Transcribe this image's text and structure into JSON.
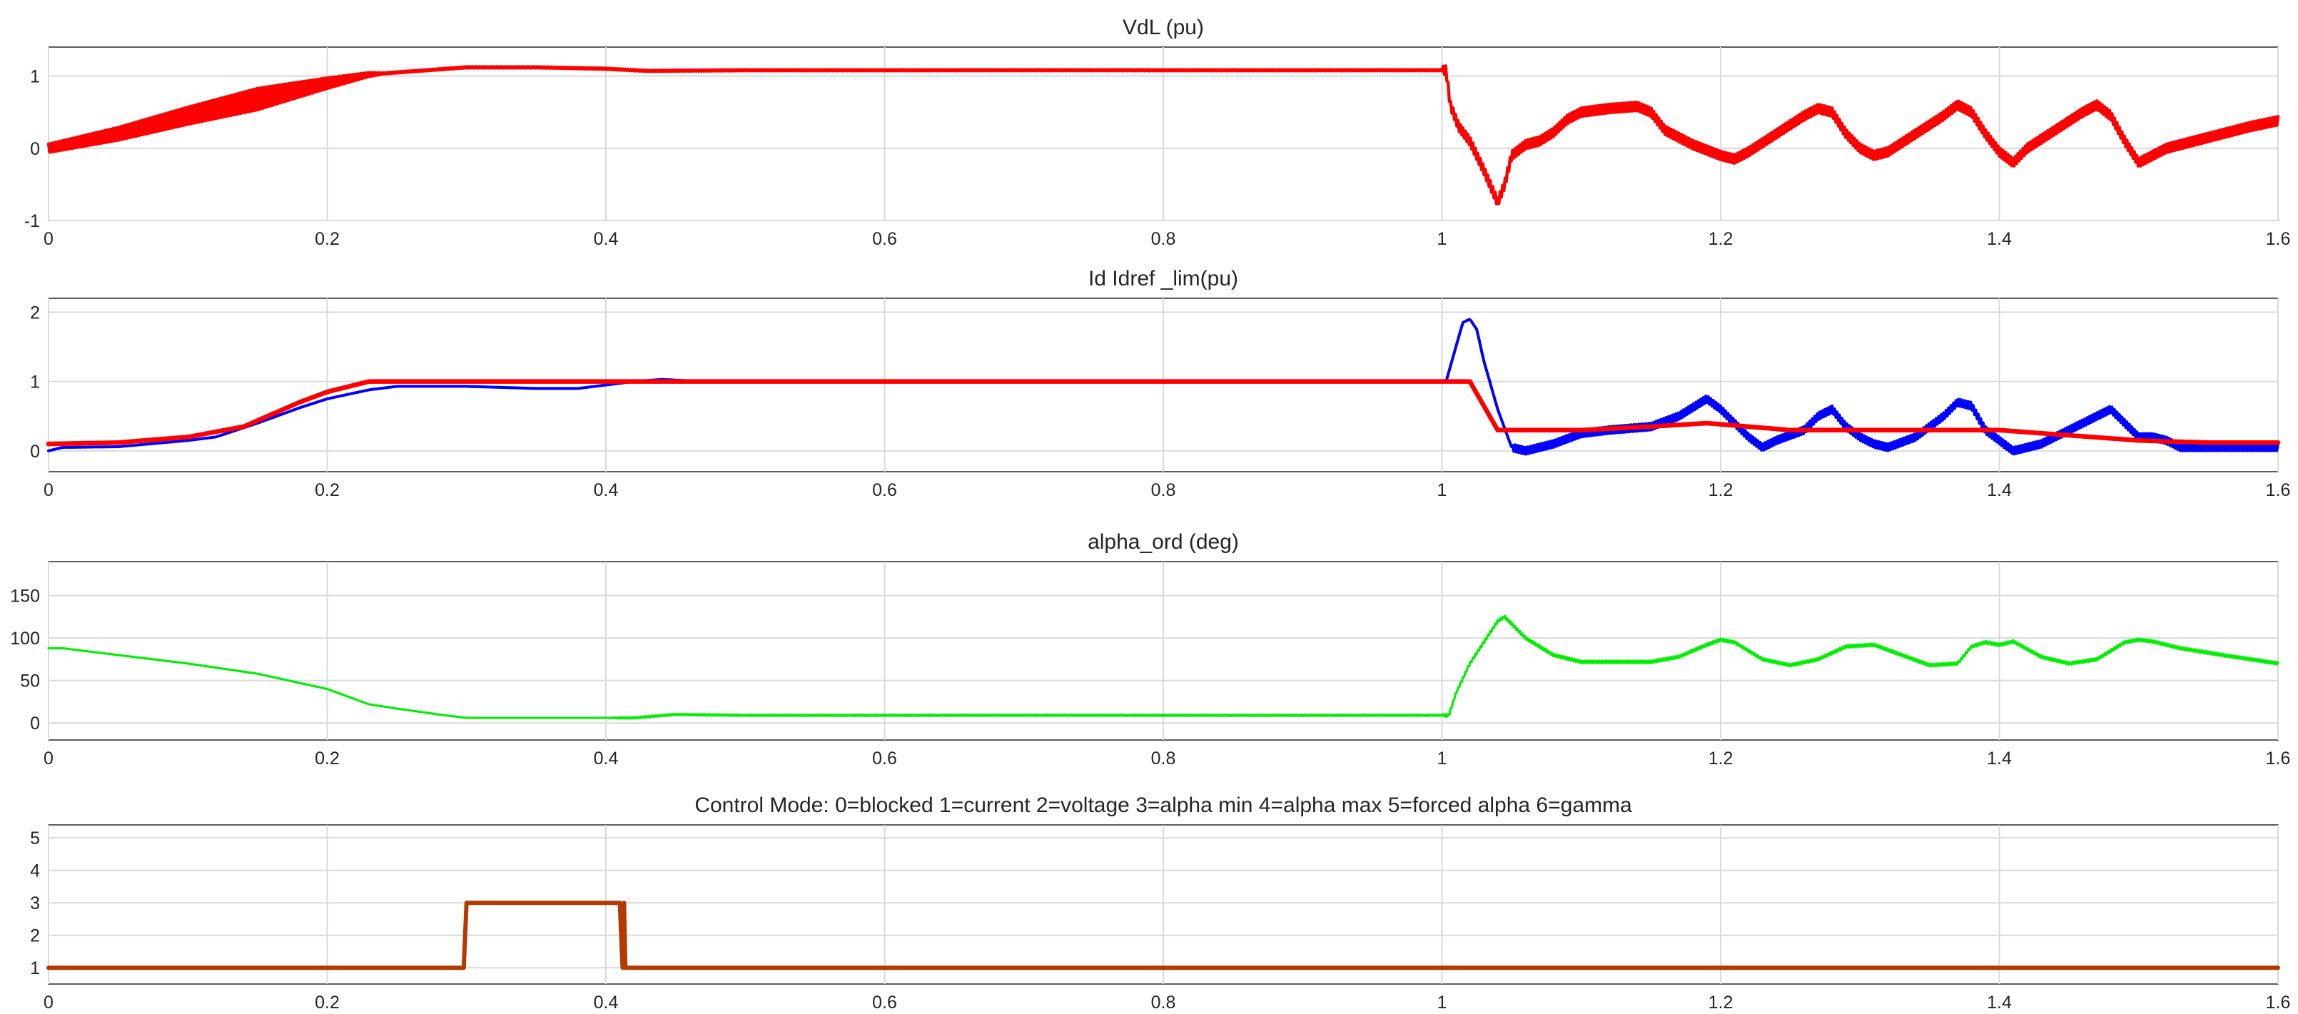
{
  "chart_data": [
    {
      "type": "line",
      "title": "VdL (pu)",
      "xlim": [
        0,
        1.6
      ],
      "ylim": [
        -1,
        1.4
      ],
      "xticks": [
        0,
        0.2,
        0.4,
        0.6,
        0.8,
        1,
        1.2,
        1.4,
        1.6
      ],
      "yticks": [
        -1,
        0,
        1
      ],
      "grid": true,
      "series": [
        {
          "color": "#ff0000",
          "ripple": [
            [
              0.0,
              0.06
            ],
            [
              0.15,
              0.15
            ],
            [
              0.23,
              0.03
            ],
            [
              0.24,
              0.01
            ],
            [
              1.0,
              0.01
            ],
            [
              1.001,
              0.06
            ],
            [
              1.6,
              0.06
            ]
          ],
          "points": [
            [
              0,
              0.0
            ],
            [
              0.05,
              0.2
            ],
            [
              0.1,
              0.45
            ],
            [
              0.15,
              0.68
            ],
            [
              0.2,
              0.9
            ],
            [
              0.23,
              1.02
            ],
            [
              0.25,
              1.05
            ],
            [
              0.3,
              1.12
            ],
            [
              0.35,
              1.12
            ],
            [
              0.4,
              1.1
            ],
            [
              0.43,
              1.07
            ],
            [
              0.5,
              1.08
            ],
            [
              0.6,
              1.08
            ],
            [
              0.8,
              1.08
            ],
            [
              0.99,
              1.08
            ],
            [
              1.003,
              1.08
            ],
            [
              1.006,
              0.6
            ],
            [
              1.012,
              0.3
            ],
            [
              1.02,
              0.1
            ],
            [
              1.03,
              -0.3
            ],
            [
              1.04,
              -0.75
            ],
            [
              1.045,
              -0.5
            ],
            [
              1.05,
              -0.1
            ],
            [
              1.06,
              0.05
            ],
            [
              1.07,
              0.1
            ],
            [
              1.08,
              0.22
            ],
            [
              1.09,
              0.4
            ],
            [
              1.1,
              0.5
            ],
            [
              1.12,
              0.55
            ],
            [
              1.14,
              0.58
            ],
            [
              1.15,
              0.5
            ],
            [
              1.16,
              0.25
            ],
            [
              1.18,
              0.05
            ],
            [
              1.2,
              -0.1
            ],
            [
              1.21,
              -0.15
            ],
            [
              1.22,
              -0.05
            ],
            [
              1.24,
              0.2
            ],
            [
              1.26,
              0.45
            ],
            [
              1.27,
              0.55
            ],
            [
              1.28,
              0.5
            ],
            [
              1.29,
              0.2
            ],
            [
              1.3,
              0.0
            ],
            [
              1.31,
              -0.1
            ],
            [
              1.32,
              -0.05
            ],
            [
              1.34,
              0.2
            ],
            [
              1.36,
              0.45
            ],
            [
              1.37,
              0.6
            ],
            [
              1.38,
              0.5
            ],
            [
              1.39,
              0.2
            ],
            [
              1.4,
              -0.05
            ],
            [
              1.41,
              -0.2
            ],
            [
              1.42,
              0.0
            ],
            [
              1.44,
              0.25
            ],
            [
              1.46,
              0.5
            ],
            [
              1.47,
              0.6
            ],
            [
              1.48,
              0.45
            ],
            [
              1.49,
              0.1
            ],
            [
              1.5,
              -0.2
            ],
            [
              1.51,
              -0.1
            ],
            [
              1.52,
              0.0
            ],
            [
              1.54,
              0.1
            ],
            [
              1.56,
              0.2
            ],
            [
              1.58,
              0.3
            ],
            [
              1.6,
              0.38
            ]
          ]
        }
      ]
    },
    {
      "type": "line",
      "title": "Id  Idref _lim(pu)",
      "xlim": [
        0,
        1.6
      ],
      "ylim": [
        -0.3,
        2.2
      ],
      "xticks": [
        0,
        0.2,
        0.4,
        0.6,
        0.8,
        1,
        1.2,
        1.4,
        1.6
      ],
      "yticks": [
        0,
        1,
        2
      ],
      "grid": true,
      "series": [
        {
          "color": "#0000ff",
          "ripple": [
            [
              0.0,
              0.0
            ],
            [
              1.05,
              0.0
            ],
            [
              1.051,
              0.05
            ],
            [
              1.6,
              0.05
            ]
          ],
          "points": [
            [
              0,
              0.0
            ],
            [
              0.01,
              0.05
            ],
            [
              0.05,
              0.06
            ],
            [
              0.1,
              0.15
            ],
            [
              0.12,
              0.2
            ],
            [
              0.15,
              0.4
            ],
            [
              0.18,
              0.62
            ],
            [
              0.2,
              0.75
            ],
            [
              0.23,
              0.88
            ],
            [
              0.25,
              0.93
            ],
            [
              0.3,
              0.93
            ],
            [
              0.35,
              0.9
            ],
            [
              0.38,
              0.9
            ],
            [
              0.4,
              0.95
            ],
            [
              0.42,
              1.0
            ],
            [
              0.44,
              1.03
            ],
            [
              0.46,
              1.01
            ],
            [
              0.5,
              1.0
            ],
            [
              0.8,
              1.0
            ],
            [
              1.0,
              1.0
            ],
            [
              1.003,
              1.0
            ],
            [
              1.01,
              1.5
            ],
            [
              1.015,
              1.85
            ],
            [
              1.02,
              1.9
            ],
            [
              1.025,
              1.75
            ],
            [
              1.03,
              1.3
            ],
            [
              1.04,
              0.6
            ],
            [
              1.05,
              0.05
            ],
            [
              1.06,
              0.0
            ],
            [
              1.08,
              0.1
            ],
            [
              1.1,
              0.25
            ],
            [
              1.12,
              0.3
            ],
            [
              1.15,
              0.35
            ],
            [
              1.17,
              0.5
            ],
            [
              1.19,
              0.75
            ],
            [
              1.2,
              0.6
            ],
            [
              1.21,
              0.4
            ],
            [
              1.22,
              0.2
            ],
            [
              1.23,
              0.05
            ],
            [
              1.24,
              0.15
            ],
            [
              1.26,
              0.3
            ],
            [
              1.27,
              0.5
            ],
            [
              1.28,
              0.6
            ],
            [
              1.29,
              0.35
            ],
            [
              1.3,
              0.2
            ],
            [
              1.31,
              0.1
            ],
            [
              1.32,
              0.05
            ],
            [
              1.34,
              0.2
            ],
            [
              1.36,
              0.5
            ],
            [
              1.37,
              0.7
            ],
            [
              1.38,
              0.65
            ],
            [
              1.39,
              0.3
            ],
            [
              1.4,
              0.15
            ],
            [
              1.41,
              0.0
            ],
            [
              1.43,
              0.1
            ],
            [
              1.45,
              0.3
            ],
            [
              1.47,
              0.5
            ],
            [
              1.48,
              0.6
            ],
            [
              1.49,
              0.4
            ],
            [
              1.5,
              0.2
            ],
            [
              1.51,
              0.2
            ],
            [
              1.52,
              0.15
            ],
            [
              1.53,
              0.05
            ],
            [
              1.55,
              0.05
            ],
            [
              1.6,
              0.05
            ]
          ]
        },
        {
          "color": "#ff0000",
          "ripple": [],
          "points": [
            [
              0,
              0.1
            ],
            [
              0.05,
              0.12
            ],
            [
              0.1,
              0.2
            ],
            [
              0.14,
              0.35
            ],
            [
              0.18,
              0.7
            ],
            [
              0.2,
              0.85
            ],
            [
              0.23,
              1.0
            ],
            [
              1.0,
              1.0
            ],
            [
              1.02,
              1.0
            ],
            [
              1.04,
              0.3
            ],
            [
              1.1,
              0.3
            ],
            [
              1.15,
              0.35
            ],
            [
              1.19,
              0.4
            ],
            [
              1.25,
              0.3
            ],
            [
              1.4,
              0.3
            ],
            [
              1.5,
              0.15
            ],
            [
              1.55,
              0.12
            ],
            [
              1.6,
              0.12
            ]
          ]
        }
      ]
    },
    {
      "type": "line",
      "title": "alpha_ord (deg)",
      "xlim": [
        0,
        1.6
      ],
      "ylim": [
        -20,
        190
      ],
      "xticks": [
        0,
        0.2,
        0.4,
        0.6,
        0.8,
        1,
        1.2,
        1.4,
        1.6
      ],
      "yticks": [
        0,
        50,
        100,
        150
      ],
      "grid": true,
      "series": [
        {
          "color": "#00ee00",
          "ripple": [
            [
              0.0,
              0.0
            ],
            [
              0.4,
              0.0
            ],
            [
              0.41,
              0.8
            ],
            [
              1.0,
              0.8
            ],
            [
              1.001,
              1.5
            ],
            [
              1.6,
              1.5
            ]
          ],
          "points": [
            [
              0,
              88
            ],
            [
              0.01,
              88
            ],
            [
              0.05,
              80
            ],
            [
              0.1,
              70
            ],
            [
              0.15,
              58
            ],
            [
              0.2,
              40
            ],
            [
              0.23,
              22
            ],
            [
              0.25,
              17
            ],
            [
              0.28,
              10
            ],
            [
              0.3,
              6
            ],
            [
              0.35,
              6
            ],
            [
              0.42,
              6
            ],
            [
              0.45,
              10
            ],
            [
              0.5,
              9
            ],
            [
              1.0,
              9
            ],
            [
              1.005,
              9
            ],
            [
              1.01,
              35
            ],
            [
              1.02,
              70
            ],
            [
              1.04,
              120
            ],
            [
              1.045,
              125
            ],
            [
              1.06,
              100
            ],
            [
              1.08,
              80
            ],
            [
              1.1,
              72
            ],
            [
              1.15,
              72
            ],
            [
              1.17,
              78
            ],
            [
              1.19,
              92
            ],
            [
              1.2,
              98
            ],
            [
              1.21,
              95
            ],
            [
              1.23,
              75
            ],
            [
              1.25,
              68
            ],
            [
              1.27,
              75
            ],
            [
              1.29,
              90
            ],
            [
              1.31,
              92
            ],
            [
              1.33,
              80
            ],
            [
              1.35,
              68
            ],
            [
              1.37,
              70
            ],
            [
              1.38,
              90
            ],
            [
              1.39,
              95
            ],
            [
              1.4,
              92
            ],
            [
              1.41,
              96
            ],
            [
              1.43,
              78
            ],
            [
              1.45,
              70
            ],
            [
              1.47,
              75
            ],
            [
              1.49,
              95
            ],
            [
              1.5,
              98
            ],
            [
              1.51,
              96
            ],
            [
              1.53,
              88
            ],
            [
              1.56,
              80
            ],
            [
              1.6,
              70
            ]
          ]
        }
      ]
    },
    {
      "type": "line",
      "title": "Control Mode:  0=blocked  1=current 2=voltage 3=alpha min 4=alpha max 5=forced alpha 6=gamma",
      "xlim": [
        0,
        1.6
      ],
      "ylim": [
        0.5,
        5.4
      ],
      "xticks": [
        0,
        0.2,
        0.4,
        0.6,
        0.8,
        1,
        1.2,
        1.4,
        1.6
      ],
      "yticks": [
        1,
        2,
        3,
        4,
        5
      ],
      "grid": true,
      "series": [
        {
          "color": "#b33a00",
          "ripple": [],
          "points": [
            [
              0,
              1
            ],
            [
              0.298,
              1
            ],
            [
              0.3,
              3
            ],
            [
              0.41,
              3
            ],
            [
              0.412,
              1
            ],
            [
              0.413,
              3
            ],
            [
              0.414,
              1
            ],
            [
              1.6,
              1
            ]
          ]
        }
      ]
    }
  ]
}
